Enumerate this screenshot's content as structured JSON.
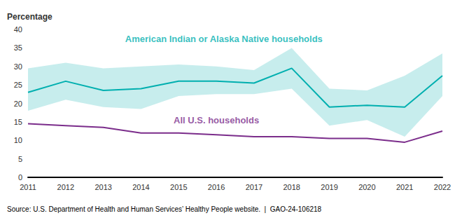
{
  "chart_data": {
    "type": "line",
    "x": [
      2011,
      2012,
      2013,
      2014,
      2015,
      2016,
      2017,
      2018,
      2019,
      2020,
      2021,
      2022
    ],
    "xlim": [
      2011,
      2022
    ],
    "xticks": [
      2011,
      2012,
      2013,
      2014,
      2015,
      2016,
      2017,
      2018,
      2019,
      2020,
      2021,
      2022
    ],
    "ylim": [
      0,
      40
    ],
    "yticks": [
      0,
      5,
      10,
      15,
      20,
      25,
      30,
      35,
      40
    ],
    "ylabel": "Percentage",
    "grid": false,
    "source": "Source: U.S. Department of Health and Human Services’ Healthy People website.  |  GAO-24-106218",
    "series": [
      {
        "color": "#00AFAF",
        "values": [
          23.0,
          26.0,
          23.5,
          24.0,
          26.0,
          26.0,
          25.5,
          29.5,
          19.0,
          19.5,
          19.0,
          27.5
        ],
        "upper": [
          29.5,
          31.0,
          29.5,
          30.0,
          30.5,
          30.0,
          29.0,
          35.0,
          24.0,
          23.5,
          27.5,
          33.5
        ],
        "lower": [
          18.0,
          21.0,
          19.0,
          18.5,
          22.0,
          22.5,
          22.5,
          24.0,
          14.0,
          15.5,
          11.0,
          22.0
        ]
      },
      {
        "color": "#7B2D8B",
        "values": [
          14.5,
          14.0,
          13.5,
          12.0,
          12.0,
          11.5,
          11.0,
          11.0,
          10.5,
          10.5,
          9.5,
          12.5
        ]
      }
    ],
    "annotations": [
      {
        "text": "American Indian or Alaska Native households",
        "x": 2016.2,
        "y": 37.5,
        "color": "#00AFAF"
      },
      {
        "text": "All U.S. households",
        "x": 2016.0,
        "y": 15.5,
        "color": "#7B2D8B"
      }
    ]
  }
}
